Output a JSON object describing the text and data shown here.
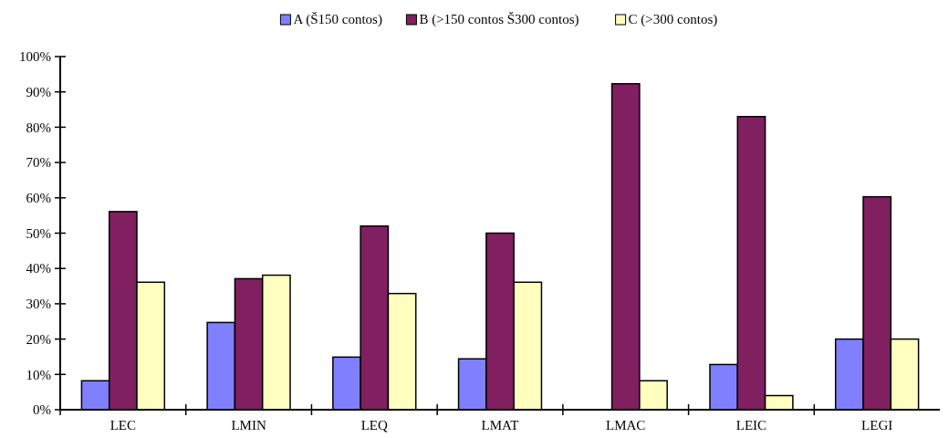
{
  "chart_data": {
    "type": "bar",
    "categories": [
      "LEC",
      "LMIN",
      "LEQ",
      "LMAT",
      "LMAC",
      "LEIC",
      "LEGI"
    ],
    "series": [
      {
        "name": "A (Š150 contos)",
        "color": "#8080ff",
        "values": [
          8.2,
          24.7,
          14.9,
          14.4,
          0,
          12.8,
          20
        ]
      },
      {
        "name": "B (>150 contos Š300 contos)",
        "color": "#802060",
        "values": [
          56.1,
          37.1,
          52,
          50,
          92.3,
          83,
          60.3
        ]
      },
      {
        "name": "C (>300 contos)",
        "color": "#ffffc0",
        "values": [
          36.1,
          38.1,
          32.9,
          36.1,
          8.2,
          4,
          20
        ]
      }
    ],
    "ylim": [
      0,
      100
    ],
    "yticks": [
      {
        "value": 0,
        "label": "0%"
      },
      {
        "value": 10,
        "label": "10%"
      },
      {
        "value": 20,
        "label": "20%"
      },
      {
        "value": 30,
        "label": "30%"
      },
      {
        "value": 40,
        "label": "40%"
      },
      {
        "value": 50,
        "label": "50%"
      },
      {
        "value": 60,
        "label": "60%"
      },
      {
        "value": 70,
        "label": "70%"
      },
      {
        "value": 80,
        "label": "80%"
      },
      {
        "value": 90,
        "label": "90%"
      },
      {
        "value": 100,
        "label": "100%"
      }
    ],
    "grid": false,
    "legend": "top"
  }
}
